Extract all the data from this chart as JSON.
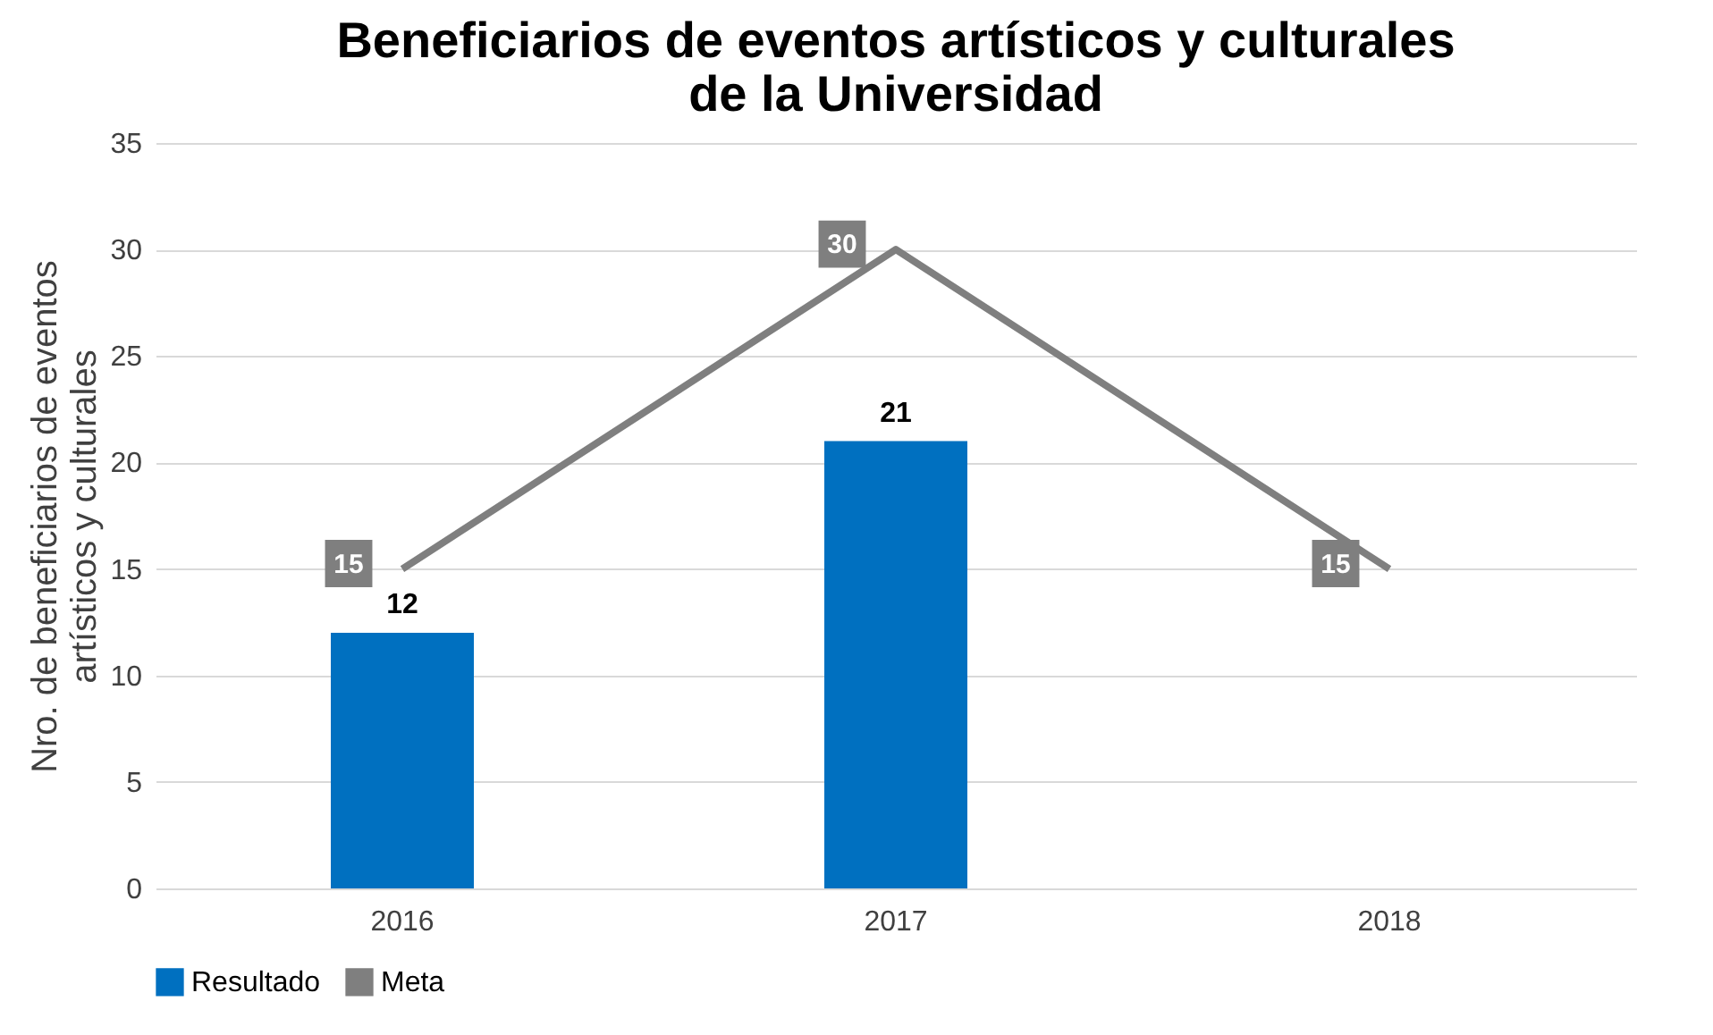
{
  "chart_data": {
    "type": "bar",
    "title": "Beneficiarios de eventos artísticos y culturales\nde la Universidad",
    "ylabel": "Nro. de beneficiarios de eventos\nartísticos y culturales",
    "categories": [
      "2016",
      "2017",
      "2018"
    ],
    "series": [
      {
        "name": "Resultado",
        "color": "#0070c0",
        "values": [
          12,
          21,
          null
        ]
      },
      {
        "name": "Meta",
        "type": "line",
        "color": "#7f7f7f",
        "values": [
          15,
          30,
          15
        ]
      }
    ],
    "ylim": [
      0,
      35
    ],
    "yticks": [
      0,
      5,
      10,
      15,
      20,
      25,
      30,
      35
    ],
    "grid": "y",
    "legend": "bottom",
    "data_labels": true
  }
}
